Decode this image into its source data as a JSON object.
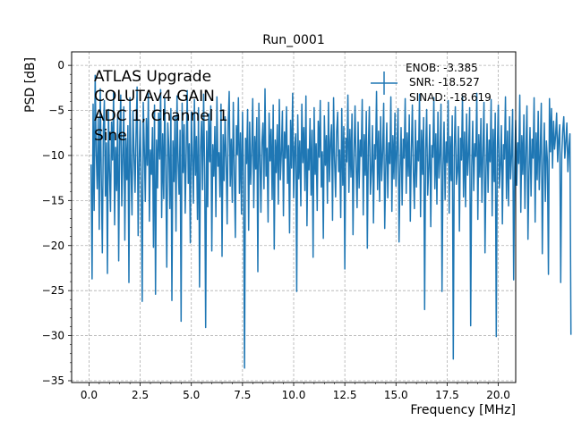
{
  "chart_data": {
    "type": "line",
    "title": "Run_0001",
    "xlabel": "Frequency [MHz]",
    "ylabel": "PSD [dB]",
    "xlim": [
      -0.85,
      20.85
    ],
    "ylim": [
      -35.2,
      1.5
    ],
    "x_ticks": [
      0.0,
      2.5,
      5.0,
      7.5,
      10.0,
      12.5,
      15.0,
      17.5,
      20.0
    ],
    "x_tick_labels": [
      "0.0",
      "2.5",
      "5.0",
      "7.5",
      "10.0",
      "12.5",
      "15.0",
      "17.5",
      "20.0"
    ],
    "y_ticks": [
      0,
      -5,
      -10,
      -15,
      -20,
      -25,
      -30,
      -35
    ],
    "y_tick_labels": [
      "0",
      "−5",
      "−10",
      "−15",
      "−20",
      "−25",
      "−30",
      "−35"
    ],
    "grid": true,
    "series_color": "#1f77b4",
    "annotation_lines": [
      "ATLAS Upgrade",
      "COLUTAv4 GAIN",
      "ADC 1, Channel 1",
      "Sine"
    ],
    "legend": {
      "placement": "top-right",
      "lines": [
        "ENOB: -3.385",
        "SNR: -18.527",
        "SINAD: -18.619"
      ]
    },
    "series": [
      {
        "name": "ENOB: -3.385 SNR: -18.527 SINAD: -18.619",
        "x_start": 0.1,
        "x_step": 0.05,
        "values": [
          -11,
          -23.7,
          -4.3,
          -16.1,
          -1.1,
          -9.5,
          -13.7,
          -5.8,
          -18.2,
          -2.6,
          -12.4,
          -20.8,
          -7.1,
          -3.9,
          -14.5,
          -8.6,
          -23.1,
          -4.9,
          -11.8,
          -16.2,
          -6.3,
          -10.5,
          -2.9,
          -17.7,
          -9.1,
          -13.9,
          -5.5,
          -21.7,
          -7.8,
          -3.3,
          -15.6,
          -10.2,
          -4.6,
          -19.4,
          -8.1,
          -12.7,
          -6.7,
          -24.1,
          -3.6,
          -11.4,
          -16.6,
          -5.1,
          -9.8,
          -14.1,
          -7.4,
          -2.4,
          -18.9,
          -10.8,
          -6.1,
          -13.3,
          -26.2,
          -4.1,
          -8.9,
          -15.1,
          -5.9,
          -11.1,
          -3.1,
          -17.3,
          -9.4,
          -12.1,
          -6.9,
          -20.2,
          -4.4,
          -25.4,
          -8.3,
          -13.6,
          -5.3,
          -10.4,
          -2.7,
          -16.9,
          -7.6,
          -14.8,
          -3.7,
          -11.6,
          -22.4,
          -6.4,
          -9.2,
          -15.9,
          -4.8,
          -26.1,
          -8.4,
          -12.9,
          -5.6,
          -18.4,
          -3.4,
          -10.6,
          -14.3,
          -7.2,
          -28.4,
          -4.2,
          -11.9,
          -6.6,
          -16.4,
          -9.6,
          -2.8,
          -13.1,
          -8.7,
          -19.7,
          -5.2,
          -10.1,
          -15.3,
          -3.8,
          -12.2,
          -7.9,
          -17.1,
          -4.7,
          -24.6,
          -9.3,
          -6.2,
          -13.8,
          -3.2,
          -11.3,
          -29.1,
          -7.3,
          -15.7,
          -5.4,
          -10.7,
          -4.5,
          -20.6,
          -8.8,
          -12.3,
          -6.8,
          -16.8,
          -3.5,
          -11.2,
          -9.7,
          -14.6,
          -4.3,
          -21.2,
          -7.7,
          -12.8,
          -5.7,
          -10.3,
          -17.6,
          -6.5,
          -2.9,
          -13.4,
          -8.2,
          -15.2,
          -4.1,
          -11.7,
          -19.1,
          -6.7,
          -9.9,
          -3.6,
          -14.2,
          -7.5,
          -16.5,
          -5.2,
          -12.5,
          -33.6,
          -8.1,
          -10.9,
          -4.9,
          -18.3,
          -6.3,
          -13.2,
          -9.5,
          -3.7,
          -15.8,
          -7.9,
          -11.5,
          -5.8,
          -22.9,
          -4.2,
          -10.1,
          -16.3,
          -8.6,
          -6.4,
          -13.7,
          -2.6,
          -12.3,
          -9.2,
          -17.4,
          -5.3,
          -10.6,
          -7.1,
          -14.9,
          -4.4,
          -20.4,
          -8.3,
          -11.9,
          -6.6,
          -15.4,
          -3.8,
          -12.7,
          -9.7,
          -5.1,
          -16.7,
          -7.4,
          -10.3,
          -4.6,
          -13.1,
          -8.9,
          -18.6,
          -6.1,
          -11.4,
          -3.1,
          -14.7,
          -9.1,
          -7.6,
          -25.1,
          -5.5,
          -12.6,
          -8.4,
          -15.6,
          -4.3,
          -10.8,
          -6.9,
          -13.9,
          -3.4,
          -17.8,
          -9.3,
          -11.6,
          -5.9,
          -14.4,
          -7.2,
          -21.3,
          -4.7,
          -12.1,
          -8.7,
          -16.1,
          -6.2,
          -10.2,
          -3.9,
          -13.5,
          -9.6,
          -19.2,
          -5.6,
          -11.1,
          -7.8,
          -15.3,
          -4.1,
          -12.9,
          -8.5,
          -6.6,
          -17.2,
          -3.6,
          -10.5,
          -14.6,
          -7.4,
          -5.2,
          -11.8,
          -9.4,
          -16.9,
          -4.8,
          -13.3,
          -6.8,
          -22.6,
          -8.1,
          -10.7,
          -3.3,
          -14.1,
          -7.1,
          -12.4,
          -5.4,
          -18.8,
          -9.9,
          -4.5,
          -11.3,
          -15.8,
          -6.3,
          -13.6,
          -8.3,
          -10.1,
          -3.8,
          -16.6,
          -7.7,
          -12.2,
          -5.1,
          -20.3,
          -9.1,
          -4.6,
          -14.3,
          -11.7,
          -6.7,
          -17.5,
          -8.8,
          -10.4,
          -2.9,
          -13.8,
          -7.3,
          -15.1,
          -5.7,
          -12.8,
          -9.5,
          -4.2,
          -18.1,
          -11.2,
          -6.4,
          -14.7,
          -8.6,
          -10.9,
          -3.5,
          -16.2,
          -7.8,
          -12.6,
          -5.3,
          -13.4,
          -9.2,
          -4.8,
          -19.6,
          -11.5,
          -6.9,
          -15.5,
          -8.2,
          -10.3,
          -3.7,
          -14.2,
          -7.5,
          -12.3,
          -5.5,
          -17.3,
          -9.7,
          -4.4,
          -11.9,
          -15.9,
          -6.1,
          -13.5,
          -8.4,
          -10.6,
          -3.2,
          -16.8,
          -7.2,
          -12.1,
          -5.8,
          -27.1,
          -9.4,
          -4.9,
          -14.4,
          -11.4,
          -6.6,
          -17.9,
          -8.9,
          -10.2,
          -3.6,
          -13.7,
          -7.6,
          -15.4,
          -5.2,
          -12.5,
          -9.8,
          -4.3,
          -25.1,
          -11.1,
          -6.3,
          -14.9,
          -8.5,
          -10.8,
          -3.9,
          -16.4,
          -7.9,
          -12.8,
          -5.6,
          -32.6,
          -9.1,
          -4.6,
          -13.2,
          -11.8,
          -6.8,
          -18.4,
          -8.1,
          -10.5,
          -3.4,
          -14.6,
          -7.4,
          -15.7,
          -5.4,
          -12.2,
          -9.6,
          -4.7,
          -28.9,
          -11.3,
          -6.2,
          -13.9,
          -8.7,
          -10.1,
          -3.1,
          -17.1,
          -7.7,
          -12.4,
          -5.9,
          -15.2,
          -9.3,
          -4.1,
          -20.8,
          -11.6,
          -6.5,
          -14.1,
          -8.3,
          -10.7,
          -3.8,
          -16.7,
          -7.1,
          -12.9,
          -5.3,
          -30.1,
          -9.5,
          -4.4,
          -13.6,
          -11.1,
          -6.7,
          -17.6,
          -8.8,
          -10.4,
          -3.5,
          -14.8,
          -7.3,
          -15.6,
          -5.7,
          -12.6,
          -9.9,
          -4.9,
          -23.8,
          -11.4,
          -6.1,
          -13.3,
          -8.6,
          -10.9,
          -3.3,
          -16.3,
          -7.8,
          -12.1,
          -5.5,
          -15.9,
          -9.2,
          -4.5,
          -19.3,
          -11.7,
          -6.9,
          -14.5,
          -8.2,
          -10.3,
          -3.6,
          -17.4,
          -7.5,
          -12.7,
          -5.1,
          -13.8,
          -9.7,
          -4.2,
          -20.9,
          -11.2,
          -6.4,
          -15.1,
          -8.4,
          -10.6,
          -23.2,
          -3.7,
          -9.6,
          -4.8,
          -11.4,
          -6.2,
          -9.3,
          -7.8,
          -5.3,
          -10.7,
          -8.1,
          -6.6,
          -24.1,
          -9.9,
          -7.2,
          -5.7,
          -10.3,
          -8.5,
          -6.4,
          -11.8,
          -9.1,
          -7.6,
          -29.9
        ]
      }
    ]
  }
}
